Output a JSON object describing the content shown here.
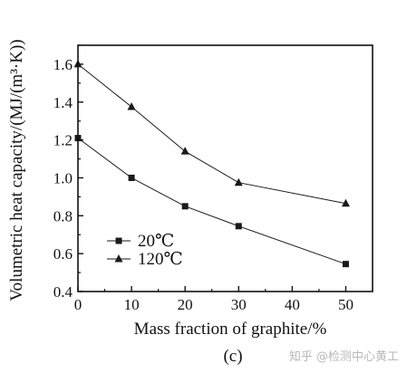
{
  "chart_data": {
    "type": "line",
    "x": [
      0,
      10,
      20,
      30,
      50
    ],
    "series": [
      {
        "name": "20℃",
        "marker": "square",
        "values": [
          1.21,
          1.0,
          0.85,
          0.745,
          0.545
        ]
      },
      {
        "name": "120℃",
        "marker": "triangle",
        "values": [
          1.6,
          1.375,
          1.14,
          0.975,
          0.865
        ]
      }
    ],
    "xlabel": "Mass fraction of graphite/%",
    "ylabel": "Volumetric heat capacity/(MJ/(m³·K))",
    "xlim": [
      0,
      55
    ],
    "ylim": [
      0.4,
      1.7
    ],
    "xticks": [
      "0",
      "10",
      "20",
      "30",
      "40",
      "50"
    ],
    "yticks": [
      "0.4",
      "0.6",
      "0.8",
      "1.0",
      "1.2",
      "1.4",
      "1.6"
    ],
    "grid": false,
    "legend_position": "bottom-left",
    "line_color": "#1a1a1a"
  },
  "panel_label": "(c)",
  "watermark": "知乎 @检测中心黄工"
}
